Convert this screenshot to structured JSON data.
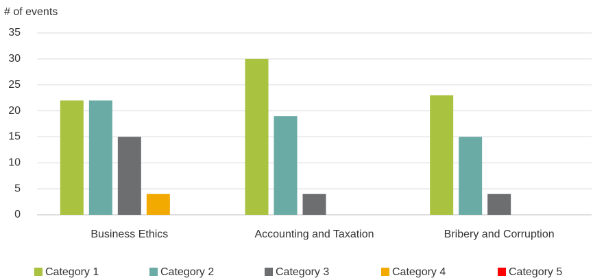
{
  "chart_data": {
    "type": "bar",
    "y_axis_label": "# of events",
    "categories": [
      "Business Ethics",
      "Accounting and Taxation",
      "Bribery and Corruption"
    ],
    "series": [
      {
        "name": "Category 1",
        "color": "#a9c23f",
        "values": [
          22,
          30,
          23
        ]
      },
      {
        "name": "Category 2",
        "color": "#6aaba5",
        "values": [
          22,
          19,
          15
        ]
      },
      {
        "name": "Category 3",
        "color": "#6d6e70",
        "values": [
          15,
          4,
          4
        ]
      },
      {
        "name": "Category 4",
        "color": "#f2a900",
        "values": [
          4,
          0,
          0
        ]
      },
      {
        "name": "Category 5",
        "color": "#ff0000",
        "values": [
          0,
          0,
          0
        ]
      }
    ],
    "ylim": [
      0,
      35
    ],
    "yticks": [
      0,
      5,
      10,
      15,
      20,
      25,
      30,
      35
    ],
    "grid": true,
    "legend": "bottom"
  }
}
